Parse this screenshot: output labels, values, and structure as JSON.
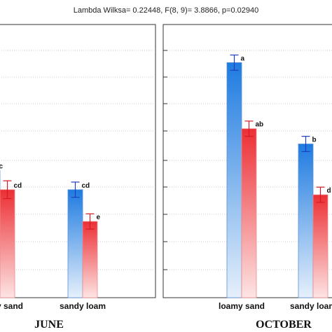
{
  "header": {
    "stat_text": "Lambda Wilksa= 0.22448, F(8, 9)= 3.8866, p=0.02940"
  },
  "colors": {
    "series1": "#1e7be0",
    "series2": "#e8262d",
    "grid": "#9a9a9a",
    "errbar1": "#1f3fbf",
    "errbar2": "#d41a22"
  },
  "chart_data": [
    {
      "type": "bar",
      "panel": "JUNE",
      "categories": [
        "loamy sand",
        "sandy loam"
      ],
      "series": [
        {
          "values": [
            5.5,
            4.0
          ],
          "errors": [
            0.6,
            0.6
          ],
          "letters": [
            "c",
            "cd"
          ]
        },
        {
          "values": [
            4.0,
            1.5
          ],
          "errors": [
            0.7,
            0.6
          ],
          "letters": [
            "cd",
            "e"
          ]
        }
      ],
      "ylim": [
        -4.5,
        17
      ],
      "grid": true
    },
    {
      "type": "bar",
      "panel": "OCTOBER",
      "categories": [
        "loamy sand",
        "sandy loam"
      ],
      "series": [
        {
          "values": [
            14.0,
            7.6
          ],
          "errors": [
            0.6,
            0.6
          ],
          "letters": [
            "a",
            "b"
          ]
        },
        {
          "values": [
            8.8,
            3.6
          ],
          "errors": [
            0.6,
            0.6
          ],
          "letters": [
            "ab",
            "d"
          ]
        }
      ],
      "ylim": [
        -4.5,
        17
      ],
      "grid": true
    }
  ]
}
